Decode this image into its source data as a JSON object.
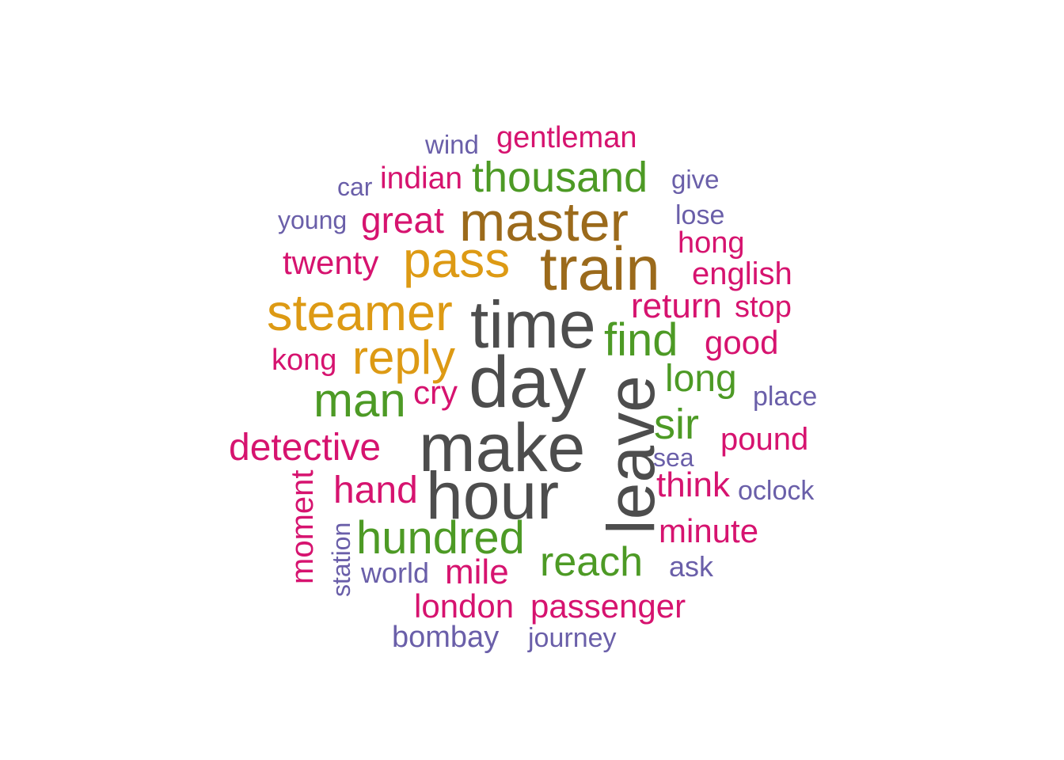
{
  "palette": {
    "gray": "#4d4d4d",
    "brown": "#9b6a1b",
    "gold": "#dd9a14",
    "green": "#4d9a25",
    "magenta": "#d6136f",
    "purple": "#6a5fa9"
  },
  "words": [
    {
      "id": "wind",
      "text": "wind"
    },
    {
      "id": "gentleman",
      "text": "gentleman"
    },
    {
      "id": "car",
      "text": "car"
    },
    {
      "id": "indian",
      "text": "indian"
    },
    {
      "id": "thousand",
      "text": "thousand"
    },
    {
      "id": "give",
      "text": "give"
    },
    {
      "id": "young",
      "text": "young"
    },
    {
      "id": "great",
      "text": "great"
    },
    {
      "id": "master",
      "text": "master"
    },
    {
      "id": "lose",
      "text": "lose"
    },
    {
      "id": "hong",
      "text": "hong"
    },
    {
      "id": "twenty",
      "text": "twenty"
    },
    {
      "id": "pass",
      "text": "pass"
    },
    {
      "id": "train",
      "text": "train"
    },
    {
      "id": "english",
      "text": "english"
    },
    {
      "id": "steamer",
      "text": "steamer"
    },
    {
      "id": "time",
      "text": "time"
    },
    {
      "id": "return",
      "text": "return"
    },
    {
      "id": "stop",
      "text": "stop"
    },
    {
      "id": "find",
      "text": "find"
    },
    {
      "id": "good",
      "text": "good"
    },
    {
      "id": "kong",
      "text": "kong"
    },
    {
      "id": "reply",
      "text": "reply"
    },
    {
      "id": "day",
      "text": "day"
    },
    {
      "id": "long",
      "text": "long"
    },
    {
      "id": "man",
      "text": "man"
    },
    {
      "id": "cry",
      "text": "cry"
    },
    {
      "id": "place",
      "text": "place"
    },
    {
      "id": "leave",
      "text": "leave"
    },
    {
      "id": "sir",
      "text": "sir"
    },
    {
      "id": "detective",
      "text": "detective"
    },
    {
      "id": "make",
      "text": "make"
    },
    {
      "id": "pound",
      "text": "pound"
    },
    {
      "id": "sea",
      "text": "sea"
    },
    {
      "id": "moment",
      "text": "moment"
    },
    {
      "id": "hand",
      "text": "hand"
    },
    {
      "id": "hour",
      "text": "hour"
    },
    {
      "id": "think",
      "text": "think"
    },
    {
      "id": "oclock",
      "text": "oclock"
    },
    {
      "id": "station",
      "text": "station"
    },
    {
      "id": "hundred",
      "text": "hundred"
    },
    {
      "id": "minute",
      "text": "minute"
    },
    {
      "id": "reach",
      "text": "reach"
    },
    {
      "id": "world",
      "text": "world"
    },
    {
      "id": "mile",
      "text": "mile"
    },
    {
      "id": "ask",
      "text": "ask"
    },
    {
      "id": "london",
      "text": "london"
    },
    {
      "id": "passenger",
      "text": "passenger"
    },
    {
      "id": "bombay",
      "text": "bombay"
    },
    {
      "id": "journey",
      "text": "journey"
    }
  ]
}
